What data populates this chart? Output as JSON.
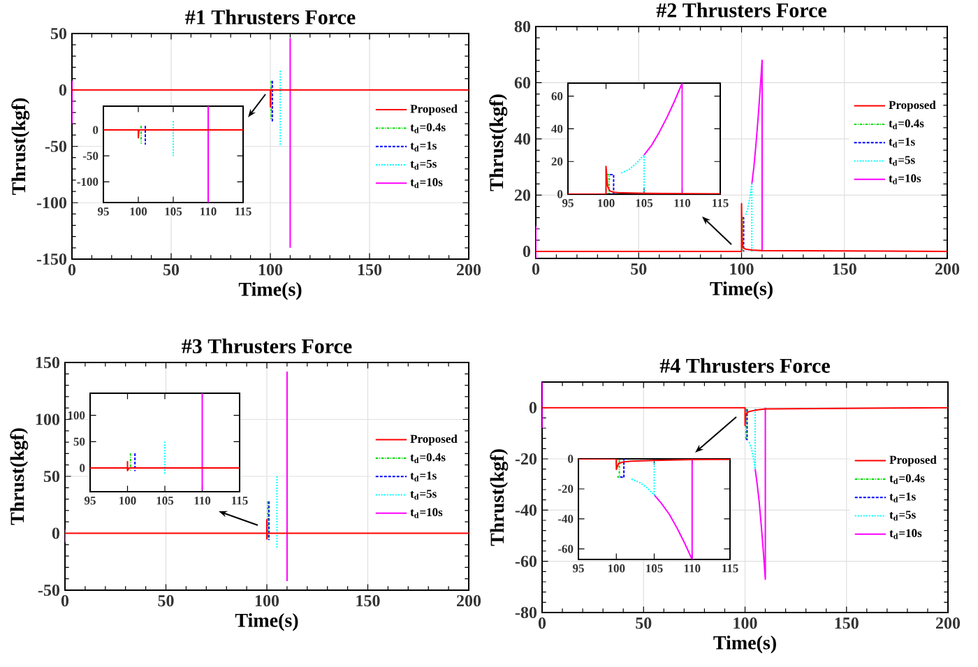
{
  "chart_data": [
    {
      "type": "line",
      "title": "#1 Thrusters Force",
      "xlabel": "Time(s)",
      "ylabel": "Thrust(kgf)",
      "xlim": [
        0,
        200
      ],
      "xticks": [
        0,
        50,
        100,
        150,
        200
      ],
      "ylim": [
        -150,
        50
      ],
      "yticks": [
        -150,
        -100,
        -50,
        0,
        50
      ],
      "grid": true,
      "legend": "right",
      "series": [
        {
          "name": "Proposed",
          "color": "#ff0000",
          "line_style": "solid",
          "x": [
            0,
            100,
            100,
            100.1,
            200
          ],
          "values": [
            0,
            0,
            -15,
            0,
            0
          ]
        },
        {
          "name": "t$_{d}$=0.4s",
          "color": "#00dd00",
          "line_style": "dashdot",
          "x": [
            100.4,
            100.4
          ],
          "values": [
            8,
            -26
          ]
        },
        {
          "name": "t$_{d}$=1s",
          "color": "#0000ff",
          "line_style": "dashed",
          "x": [
            101,
            101
          ],
          "values": [
            8,
            -28
          ]
        },
        {
          "name": "t$_{d}$=5s",
          "color": "#00ffff",
          "line_style": "dotted",
          "x": [
            105,
            105
          ],
          "values": [
            17,
            -50
          ]
        },
        {
          "name": "t$_{d}$=10s",
          "color": "#ff00ff",
          "line_style": "solid",
          "x": [
            0,
            0,
            55,
            110,
            110
          ],
          "values": [
            8,
            -30,
            null,
            46,
            -140
          ]
        }
      ]
    },
    {
      "type": "line",
      "xlim": [
        95,
        115
      ],
      "xticks": [
        95,
        100,
        105,
        110,
        115
      ],
      "ylim": [
        -140,
        46
      ],
      "yticks": [
        -100,
        -50,
        0
      ],
      "series": [
        {
          "color": "#ff0000",
          "line_style": "solid",
          "x": [
            95,
            100,
            100,
            100.1,
            115
          ],
          "values": [
            0,
            0,
            -15,
            0,
            0
          ]
        },
        {
          "color": "#00dd00",
          "line_style": "dashdot",
          "x": [
            100.4,
            100.4
          ],
          "values": [
            8,
            -26
          ]
        },
        {
          "color": "#0000ff",
          "line_style": "dashed",
          "x": [
            101,
            101
          ],
          "values": [
            8,
            -28
          ]
        },
        {
          "color": "#00ffff",
          "line_style": "dotted",
          "x": [
            105,
            105
          ],
          "values": [
            17,
            -50
          ]
        },
        {
          "color": "#ff00ff",
          "line_style": "solid",
          "x": [
            110,
            110
          ],
          "values": [
            46,
            -140
          ]
        }
      ]
    },
    {
      "type": "line",
      "title": "#2 Thrusters Force",
      "xlabel": "Time(s)",
      "ylabel": "Thrust(kgf)",
      "xlim": [
        0,
        200
      ],
      "xticks": [
        0,
        50,
        100,
        150,
        200
      ],
      "ylim": [
        -2.5,
        80
      ],
      "yticks": [
        0,
        20,
        40,
        60,
        80
      ],
      "grid": true,
      "legend": "right",
      "series": [
        {
          "name": "Proposed",
          "color": "#ff0000",
          "line_style": "solid",
          "x": [
            0,
            100,
            100,
            100.2,
            100.5,
            101,
            102,
            105,
            110,
            200
          ],
          "values": [
            0,
            0,
            17,
            5,
            2,
            1.2,
            0.8,
            0.5,
            0.3,
            0
          ]
        },
        {
          "name": "t$_{d}$=0.4s",
          "color": "#00dd00",
          "line_style": "dashdot",
          "x": [
            100.4,
            100.4
          ],
          "values": [
            12,
            0
          ]
        },
        {
          "name": "t$_{d}$=1s",
          "color": "#0000ff",
          "line_style": "dashed",
          "x": [
            100.5,
            101,
            101
          ],
          "values": [
            12,
            12,
            0
          ]
        },
        {
          "name": "t$_{d}$=5s",
          "color": "#00ffff",
          "line_style": "dotted",
          "x": [
            102,
            103,
            104,
            105,
            105
          ],
          "values": [
            13,
            15,
            19,
            24,
            0
          ]
        },
        {
          "name": "t$_{d}$=10s",
          "color": "#ff00ff",
          "line_style": "solid",
          "x": [
            0,
            0,
            50,
            105,
            106,
            107,
            108,
            109,
            110,
            110
          ],
          "values": [
            9,
            -2.5,
            null,
            24,
            30,
            38,
            47,
            57,
            68,
            0
          ]
        }
      ]
    },
    {
      "type": "line",
      "xlim": [
        95,
        115
      ],
      "xticks": [
        95,
        100,
        105,
        110,
        115
      ],
      "ylim": [
        0,
        68
      ],
      "yticks": [
        0,
        20,
        40,
        60
      ],
      "series": [
        {
          "color": "#ff0000",
          "line_style": "solid",
          "x": [
            95,
            100,
            100,
            100.2,
            100.5,
            101,
            102,
            105,
            110,
            115
          ],
          "values": [
            0,
            0,
            17,
            5,
            2,
            1.2,
            0.8,
            0.5,
            0.3,
            0.2
          ]
        },
        {
          "color": "#00dd00",
          "line_style": "dashdot",
          "x": [
            100.1,
            100.4,
            100.4
          ],
          "values": [
            12,
            12,
            0
          ]
        },
        {
          "color": "#0000ff",
          "line_style": "dashed",
          "x": [
            100.5,
            101,
            101
          ],
          "values": [
            12,
            12,
            0
          ]
        },
        {
          "color": "#00ffff",
          "line_style": "dotted",
          "x": [
            102,
            103,
            104,
            105,
            105
          ],
          "values": [
            13,
            15,
            19,
            24,
            0
          ]
        },
        {
          "color": "#ff00ff",
          "line_style": "solid",
          "x": [
            105,
            106,
            107,
            108,
            109,
            110,
            110
          ],
          "values": [
            24,
            30,
            38,
            47,
            57,
            68,
            0
          ]
        }
      ]
    },
    {
      "type": "line",
      "title": "#3 Thrusters Force",
      "xlabel": "Time(s)",
      "ylabel": "Thrust(kgf)",
      "xlim": [
        0,
        200
      ],
      "xticks": [
        0,
        50,
        100,
        150,
        200
      ],
      "ylim": [
        -50,
        150
      ],
      "yticks": [
        -50,
        0,
        50,
        100,
        150
      ],
      "grid": true,
      "legend": "right",
      "series": [
        {
          "name": "Proposed",
          "color": "#ff0000",
          "line_style": "solid",
          "x": [
            0,
            100,
            100,
            100,
            100.2,
            200
          ],
          "values": [
            0,
            0,
            12,
            -5,
            0,
            0
          ]
        },
        {
          "name": "t$_{d}$=0.4s",
          "color": "#00dd00",
          "line_style": "dashdot",
          "x": [
            100.4,
            100.4
          ],
          "values": [
            28,
            -5
          ]
        },
        {
          "name": "t$_{d}$=1s",
          "color": "#0000ff",
          "line_style": "dashed",
          "x": [
            101,
            101
          ],
          "values": [
            28,
            -6
          ]
        },
        {
          "name": "t$_{d}$=5s",
          "color": "#00ffff",
          "line_style": "dotted",
          "x": [
            105,
            105
          ],
          "values": [
            50,
            -13
          ]
        },
        {
          "name": "t$_{d}$=10s",
          "color": "#ff00ff",
          "line_style": "solid",
          "x": [
            0,
            0,
            55,
            110,
            110
          ],
          "values": [
            3,
            -8,
            null,
            142,
            -42
          ]
        }
      ]
    },
    {
      "type": "line",
      "xlim": [
        95,
        115
      ],
      "xticks": [
        95,
        100,
        105,
        110,
        115
      ],
      "ylim": [
        -45,
        142
      ],
      "yticks": [
        0,
        50,
        100
      ],
      "series": [
        {
          "color": "#ff0000",
          "line_style": "solid",
          "x": [
            95,
            100,
            100,
            100,
            100.2,
            115
          ],
          "values": [
            0,
            0,
            12,
            -5,
            0,
            0
          ]
        },
        {
          "color": "#00dd00",
          "line_style": "dashdot",
          "x": [
            100.4,
            100.4
          ],
          "values": [
            28,
            -5
          ]
        },
        {
          "color": "#0000ff",
          "line_style": "dashed",
          "x": [
            101,
            101
          ],
          "values": [
            28,
            -6
          ]
        },
        {
          "color": "#00ffff",
          "line_style": "dotted",
          "x": [
            105,
            105
          ],
          "values": [
            50,
            -13
          ]
        },
        {
          "color": "#ff00ff",
          "line_style": "solid",
          "x": [
            110,
            110
          ],
          "values": [
            142,
            -42
          ]
        }
      ]
    },
    {
      "type": "line",
      "title": "#4 Thrusters Force",
      "xlabel": "Time(s)",
      "ylabel": "Thrust(kgf)",
      "xlim": [
        0,
        200
      ],
      "xticks": [
        0,
        50,
        100,
        150,
        200
      ],
      "ylim": [
        -80,
        10
      ],
      "yticks": [
        -80,
        -60,
        -40,
        -20,
        0
      ],
      "grid": true,
      "legend": "right",
      "series": [
        {
          "name": "Proposed",
          "color": "#ff0000",
          "line_style": "solid",
          "x": [
            0,
            100,
            100,
            100.3,
            101,
            102,
            105,
            110,
            200
          ],
          "values": [
            0,
            0,
            -7,
            -3,
            -2,
            -1.5,
            -1,
            -0.5,
            0
          ]
        },
        {
          "name": "t$_{d}$=0.4s",
          "color": "#00dd00",
          "line_style": "dashdot",
          "x": [
            100.1,
            100.4,
            100.4
          ],
          "values": [
            -12,
            -12,
            0
          ]
        },
        {
          "name": "t$_{d}$=1s",
          "color": "#0000ff",
          "line_style": "dashed",
          "x": [
            100.5,
            101,
            101
          ],
          "values": [
            -12,
            -12.5,
            0
          ]
        },
        {
          "name": "t$_{d}$=5s",
          "color": "#00ffff",
          "line_style": "dotted",
          "x": [
            102,
            103,
            104,
            105,
            105
          ],
          "values": [
            -13.5,
            -15.5,
            -19,
            -24,
            0
          ]
        },
        {
          "name": "t$_{d}$=10s",
          "color": "#ff00ff",
          "line_style": "solid",
          "x": [
            0,
            0,
            50,
            105,
            106,
            107,
            108,
            109,
            110,
            110
          ],
          "values": [
            10,
            -8,
            null,
            -24,
            -30,
            -37,
            -46,
            -56,
            -67,
            0
          ]
        }
      ]
    },
    {
      "type": "line",
      "xlim": [
        95,
        115
      ],
      "xticks": [
        95,
        100,
        105,
        110,
        115
      ],
      "ylim": [
        -67,
        0
      ],
      "yticks": [
        -60,
        -40,
        -20,
        0
      ],
      "series": [
        {
          "color": "#ff0000",
          "line_style": "solid",
          "x": [
            95,
            100,
            100,
            100.3,
            101,
            102,
            105,
            110,
            115
          ],
          "values": [
            0,
            0,
            -7,
            -3,
            -2,
            -1.5,
            -1,
            -0.5,
            -0.3
          ]
        },
        {
          "color": "#00dd00",
          "line_style": "dashdot",
          "x": [
            100.1,
            100.4,
            100.4
          ],
          "values": [
            -12,
            -12,
            0
          ]
        },
        {
          "color": "#0000ff",
          "line_style": "dashed",
          "x": [
            100.5,
            101,
            101
          ],
          "values": [
            -12,
            -12.5,
            0
          ]
        },
        {
          "color": "#00ffff",
          "line_style": "dotted",
          "x": [
            102,
            103,
            104,
            105,
            105
          ],
          "values": [
            -13.5,
            -15.5,
            -19,
            -24,
            0
          ]
        },
        {
          "color": "#ff00ff",
          "line_style": "solid",
          "x": [
            105,
            106,
            107,
            108,
            109,
            110,
            110
          ],
          "values": [
            -24,
            -30,
            -37,
            -46,
            -56,
            -67,
            0
          ]
        }
      ]
    }
  ]
}
